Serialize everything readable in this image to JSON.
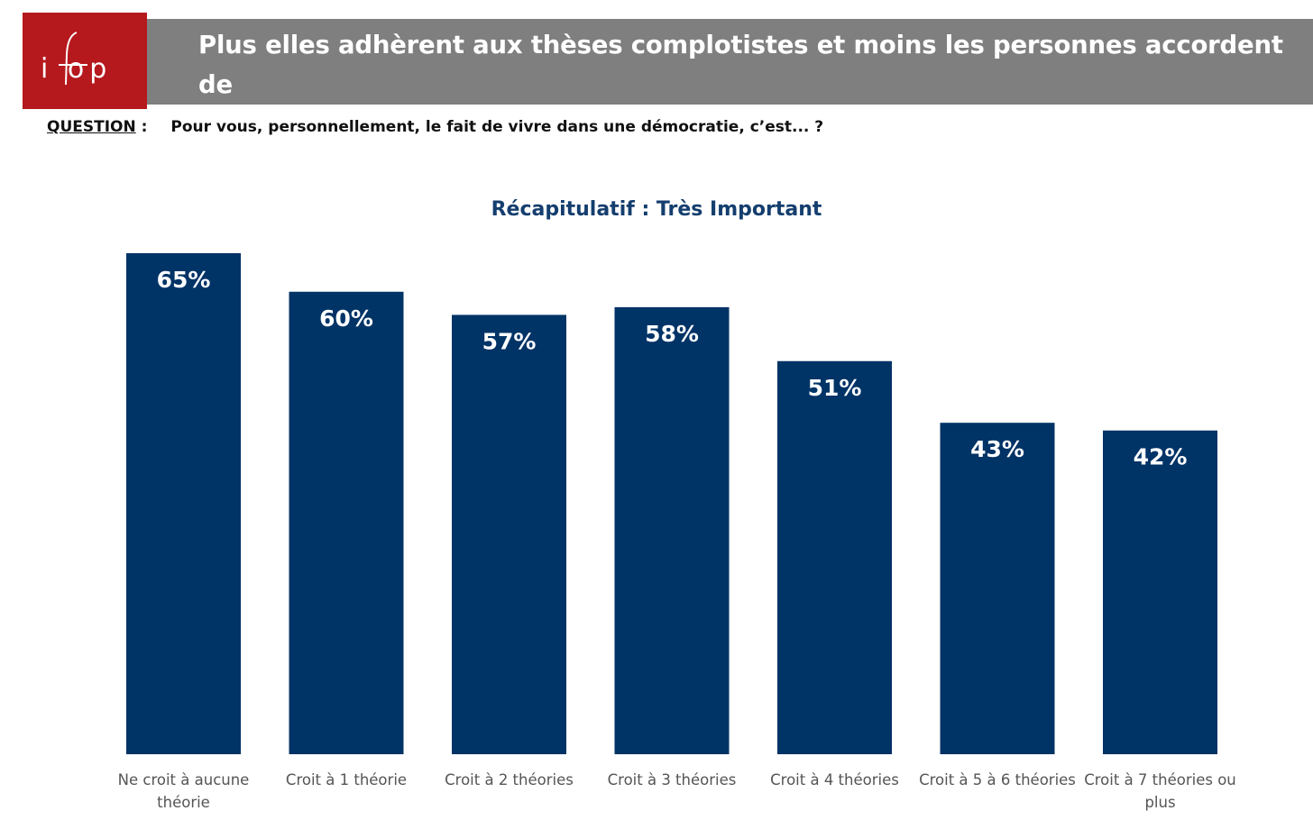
{
  "header": {
    "logo_text": "ifop",
    "title": "Plus elles adhèrent aux thèses complotistes et moins les personnes accordent de\nl’importance au fait de vivre en démocratie"
  },
  "question": {
    "label": "QUESTION",
    "separator": ":",
    "text": "Pour vous, personnellement, le fait de vivre dans une démocratie, c’est... ?"
  },
  "colors": {
    "header_band": "#7f7f7f",
    "logo_bg": "#b5181d",
    "bar": "#003366",
    "title": "#143e6e"
  },
  "chart_data": {
    "type": "bar",
    "title": "Récapitulatif : Très Important",
    "categories": [
      "Ne croit à aucune théorie",
      "Croit à 1 théorie",
      "Croit à 2 théories",
      "Croit à 3 théories",
      "Croit à 4 théories",
      "Croit à 5 à 6 théories",
      "Croit à 7 théories ou plus"
    ],
    "category_lines": [
      [
        "Ne croit à aucune",
        "théorie"
      ],
      [
        "Croit à 1 théorie"
      ],
      [
        "Croit à 2 théories"
      ],
      [
        "Croit à 3 théories"
      ],
      [
        "Croit à 4 théories"
      ],
      [
        "Croit à 5 à 6 théories"
      ],
      [
        "Croit à 7 théories ou",
        "plus"
      ]
    ],
    "values": [
      65,
      60,
      57,
      58,
      51,
      43,
      42
    ],
    "value_labels": [
      "65%",
      "60%",
      "57%",
      "58%",
      "51%",
      "43%",
      "42%"
    ],
    "unit": "%",
    "xlabel": "",
    "ylabel": "",
    "grid": false,
    "legend": "none"
  }
}
